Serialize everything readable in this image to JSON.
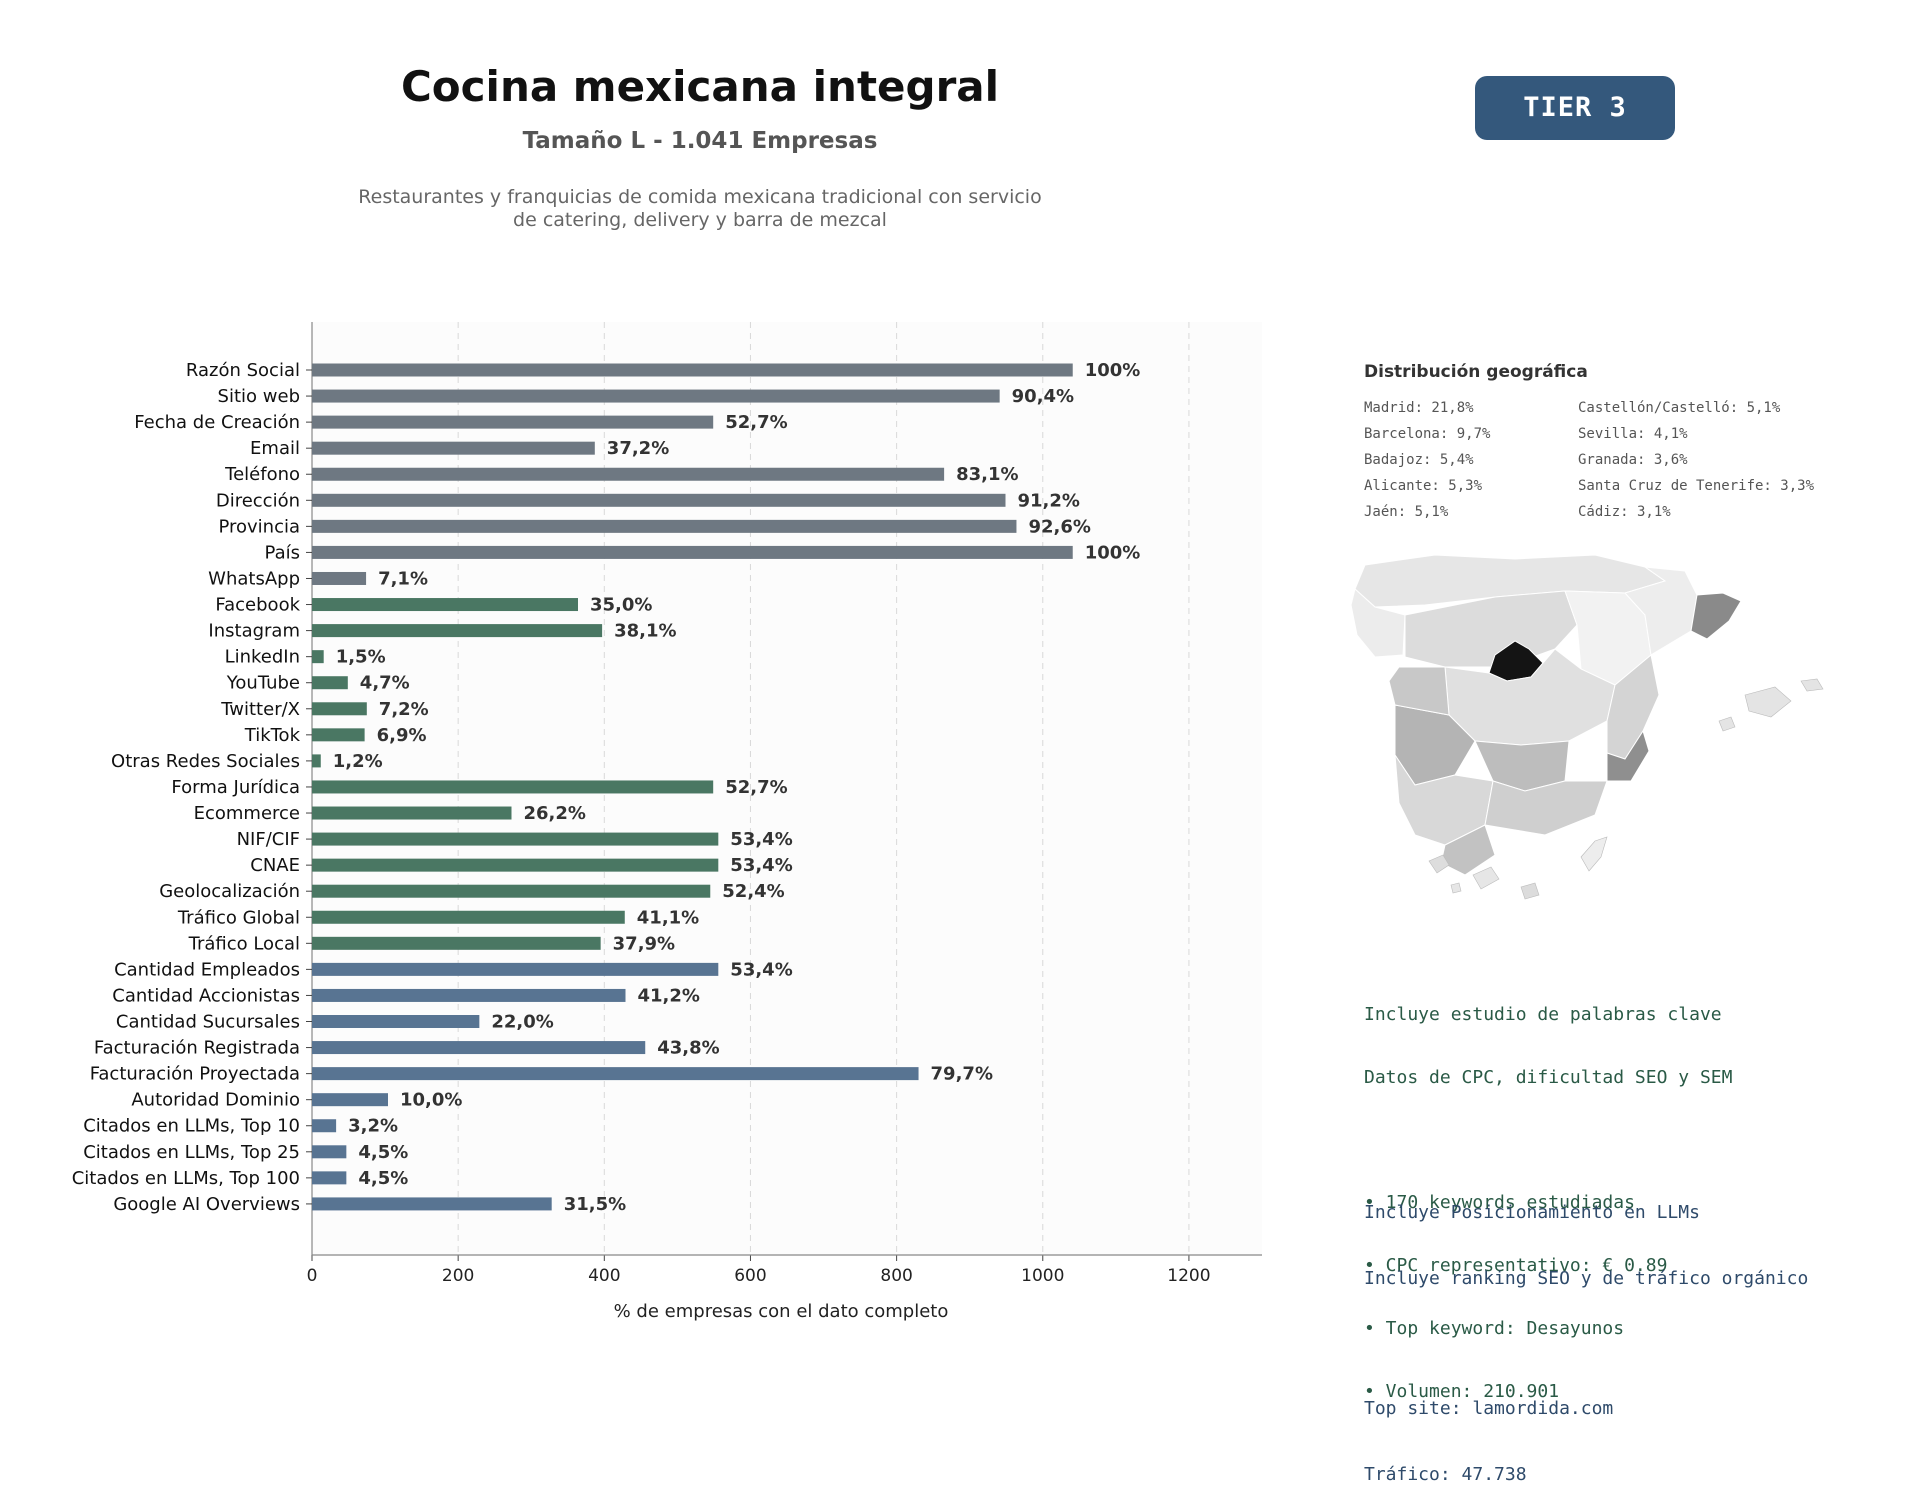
{
  "header": {
    "title": "Cocina mexicana integral",
    "subtitle": "Tamaño L - 1.041 Empresas",
    "description_line1": "Restaurantes y franquicias de comida mexicana tradicional con servicio",
    "description_line2": "de catering, delivery y barra de mezcal",
    "tier": "TIER 3"
  },
  "chart_data": {
    "type": "bar",
    "orientation": "horizontal",
    "categories": [
      "Razón Social",
      "Sitio web",
      "Fecha de Creación",
      "Email",
      "Teléfono",
      "Dirección",
      "Provincia",
      "País",
      "WhatsApp",
      "Facebook",
      "Instagram",
      "LinkedIn",
      "YouTube",
      "Twitter/X",
      "TikTok",
      "Otras Redes Sociales",
      "Forma Jurídica",
      "Ecommerce",
      "NIF/CIF",
      "CNAE",
      "Geolocalización",
      "Tráfico Global",
      "Tráfico Local",
      "Cantidad Empleados",
      "Cantidad Accionistas",
      "Cantidad Sucursales",
      "Facturación Registrada",
      "Facturación Proyectada",
      "Autoridad Dominio",
      "Citados en LLMs, Top 10",
      "Citados en LLMs, Top 25",
      "Citados en LLMs, Top 100",
      "Google AI Overviews"
    ],
    "values": [
      1041,
      941,
      549,
      387,
      865,
      949,
      964,
      1041,
      74,
      364,
      397,
      16,
      49,
      75,
      72,
      12,
      549,
      273,
      556,
      556,
      545,
      428,
      395,
      556,
      429,
      229,
      456,
      830,
      104,
      33,
      47,
      47,
      328
    ],
    "labels": [
      "100%",
      "90,4%",
      "52,7%",
      "37,2%",
      "83,1%",
      "91,2%",
      "92,6%",
      "100%",
      "7,1%",
      "35,0%",
      "38,1%",
      "1,5%",
      "4,7%",
      "7,2%",
      "6,9%",
      "1,2%",
      "52,7%",
      "26,2%",
      "53,4%",
      "53,4%",
      "52,4%",
      "41,1%",
      "37,9%",
      "53,4%",
      "41,2%",
      "22,0%",
      "43,8%",
      "79,7%",
      "10,0%",
      "3,2%",
      "4,5%",
      "4,5%",
      "31,5%"
    ],
    "groups": [
      8,
      15,
      22,
      32
    ],
    "group_colors": [
      "#6e7882",
      "#4a7763",
      "#4a7763",
      "#587492"
    ],
    "xlabel": "% de empresas con el dato completo",
    "xticks": [
      0,
      200,
      400,
      600,
      800,
      1000,
      1200
    ],
    "xlim": [
      0,
      1300
    ],
    "grid": "vertical dashed"
  },
  "geo": {
    "title": "Distribución geográfica",
    "items": [
      "Madrid: 21,8%",
      "Castellón/Castelló: 5,1%",
      "Barcelona: 9,7%",
      "Sevilla: 4,1%",
      "Badajoz: 5,4%",
      "Granada: 3,6%",
      "Alicante: 5,3%",
      "Santa Cruz de Tenerife: 3,3%",
      "Jaén: 5,1%",
      "Cádiz: 3,1%"
    ]
  },
  "seo": {
    "line1": "Incluye estudio de palabras clave",
    "line2": "Datos de CPC, dificultad SEO y SEM",
    "bullet1": "• 170 keywords estudiadas",
    "bullet2": "• CPC representativo: € 0.89",
    "bullet3": "• Top keyword: Desayunos",
    "bullet4": "• Volumen: 210.901"
  },
  "llm": {
    "line1": "Incluye Posicionamiento en LLMs",
    "line2": "Incluye ranking SEO y de tráfico orgánico",
    "line3": "Top site: lamordida.com",
    "line4": "Tráfico: 47.738"
  }
}
